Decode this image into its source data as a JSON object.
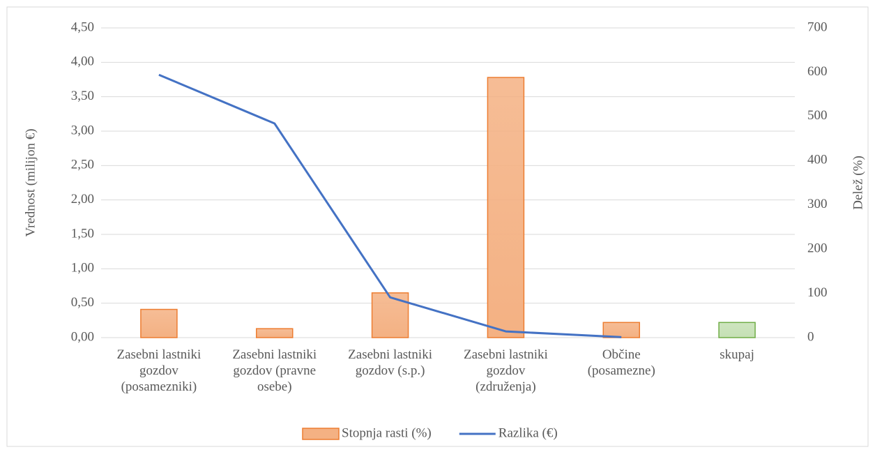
{
  "chart_data": {
    "type": "bar_line",
    "y_label": "Vrednost (milijon €)",
    "y2_label": "Delež (%)",
    "categories": [
      "Zasebni lastniki\ngozdov\n(posamezniki)",
      "Zasebni lastniki\ngozdov (pravne\nosebe)",
      "Zasebni lastniki\ngozdov (s.p.)",
      "Zasebni lastniki\ngozdov\n(združenja)",
      "Občine\n(posamezne)",
      "skupaj"
    ],
    "series": [
      {
        "name": "Stopnja rasti (%)",
        "type": "bar",
        "axis": "y",
        "color": "#f4b183",
        "stroke": "#ed7d31",
        "colors": [
          "#f4b183",
          "#f4b183",
          "#f4b183",
          "#f4b183",
          "#f4b183",
          "#c5e0b4"
        ],
        "strokes": [
          "#ed7d31",
          "#ed7d31",
          "#ed7d31",
          "#ed7d31",
          "#ed7d31",
          "#70ad47"
        ],
        "values": [
          0.41,
          0.13,
          0.65,
          3.78,
          0.22,
          0.22
        ]
      },
      {
        "name": "Razlika (€)",
        "type": "line",
        "axis": "y2",
        "color": "#4472c4",
        "values": [
          594,
          484,
          91,
          14,
          1,
          null
        ]
      }
    ],
    "ylim": [
      0,
      4.5
    ],
    "yticks": [
      {
        "value": 0,
        "label": "0,00"
      },
      {
        "value": 0.5,
        "label": "0,50"
      },
      {
        "value": 1,
        "label": "1,00"
      },
      {
        "value": 1.5,
        "label": "1,50"
      },
      {
        "value": 2,
        "label": "2,00"
      },
      {
        "value": 2.5,
        "label": "2,50"
      },
      {
        "value": 3,
        "label": "3,00"
      },
      {
        "value": 3.5,
        "label": "3,50"
      },
      {
        "value": 4,
        "label": "4,00"
      },
      {
        "value": 4.5,
        "label": "4,50"
      }
    ],
    "y2lim": [
      0,
      700
    ],
    "y2ticks": [
      0,
      100,
      200,
      300,
      400,
      500,
      600,
      700
    ],
    "grid": true,
    "legend": "bottom"
  }
}
